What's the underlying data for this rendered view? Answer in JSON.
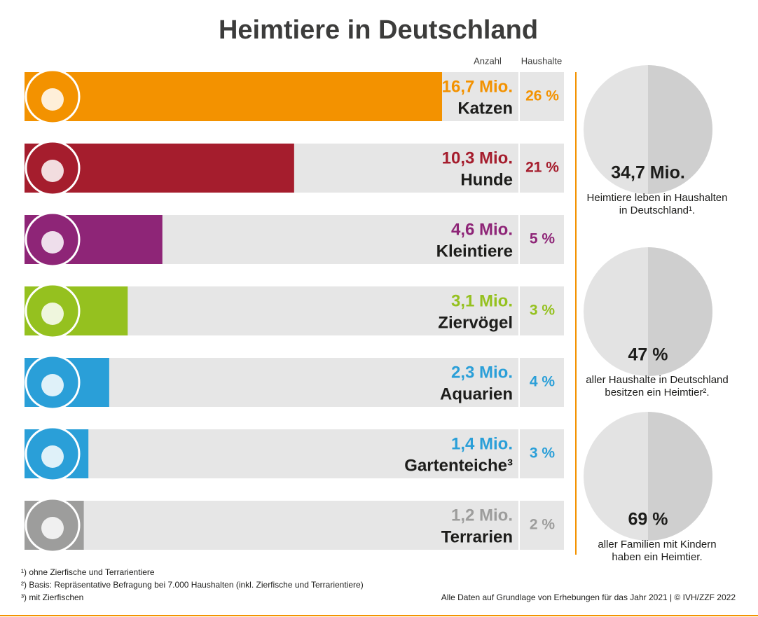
{
  "chart_data": {
    "type": "bar",
    "title": "Heimtiere in Deutschland",
    "categories": [
      "Katzen",
      "Hunde",
      "Kleintiere",
      "Ziervögel",
      "Aquarien",
      "Gartenteiche³",
      "Terrarien"
    ],
    "colors": [
      "#f39200",
      "#a51d2d",
      "#8e2577",
      "#95c11f",
      "#2a9fd8",
      "#2a9fd8",
      "#9d9d9c"
    ],
    "series": [
      {
        "name": "Anzahl",
        "values": [
          16.7,
          10.3,
          4.6,
          3.1,
          2.3,
          1.4,
          1.2
        ],
        "value_labels": [
          "16,7 Mio.",
          "10,3 Mio.",
          "4,6 Mio.",
          "3,1 Mio.",
          "2,3 Mio.",
          "1,4 Mio.",
          "1,2 Mio."
        ]
      },
      {
        "name": "Haushalte",
        "values": [
          26,
          21,
          5,
          3,
          4,
          3,
          2
        ],
        "value_labels": [
          "26 %",
          "21 %",
          "5 %",
          "3 %",
          "4 %",
          "3 %",
          "2 %"
        ]
      }
    ],
    "highlights": [
      {
        "value": 34.7,
        "label": "34,7 Mio.",
        "text": [
          "Heimtiere leben in Haushalten",
          "in Deutschland¹."
        ]
      },
      {
        "value": 47,
        "label": "47 %",
        "text": [
          "aller Haushalte in Deutschland",
          "besitzen ein Heimtier²."
        ]
      },
      {
        "value": 69,
        "label": "69 %",
        "text": [
          "aller Familien mit Kindern",
          "haben ein Heimtier."
        ]
      }
    ],
    "footnotes": [
      "¹) ohne Zierfische und Terrarientiere",
      "²) Basis: Repräsentative Befragung bei 7.000 Haushalten (inkl. Zierfische und Terrarientiere)",
      "³) mit Zierfischen"
    ],
    "source": "Alle Daten auf Grundlage von Erhebungen für das Jahr 2021 | © IVH/ZZF 2022"
  }
}
